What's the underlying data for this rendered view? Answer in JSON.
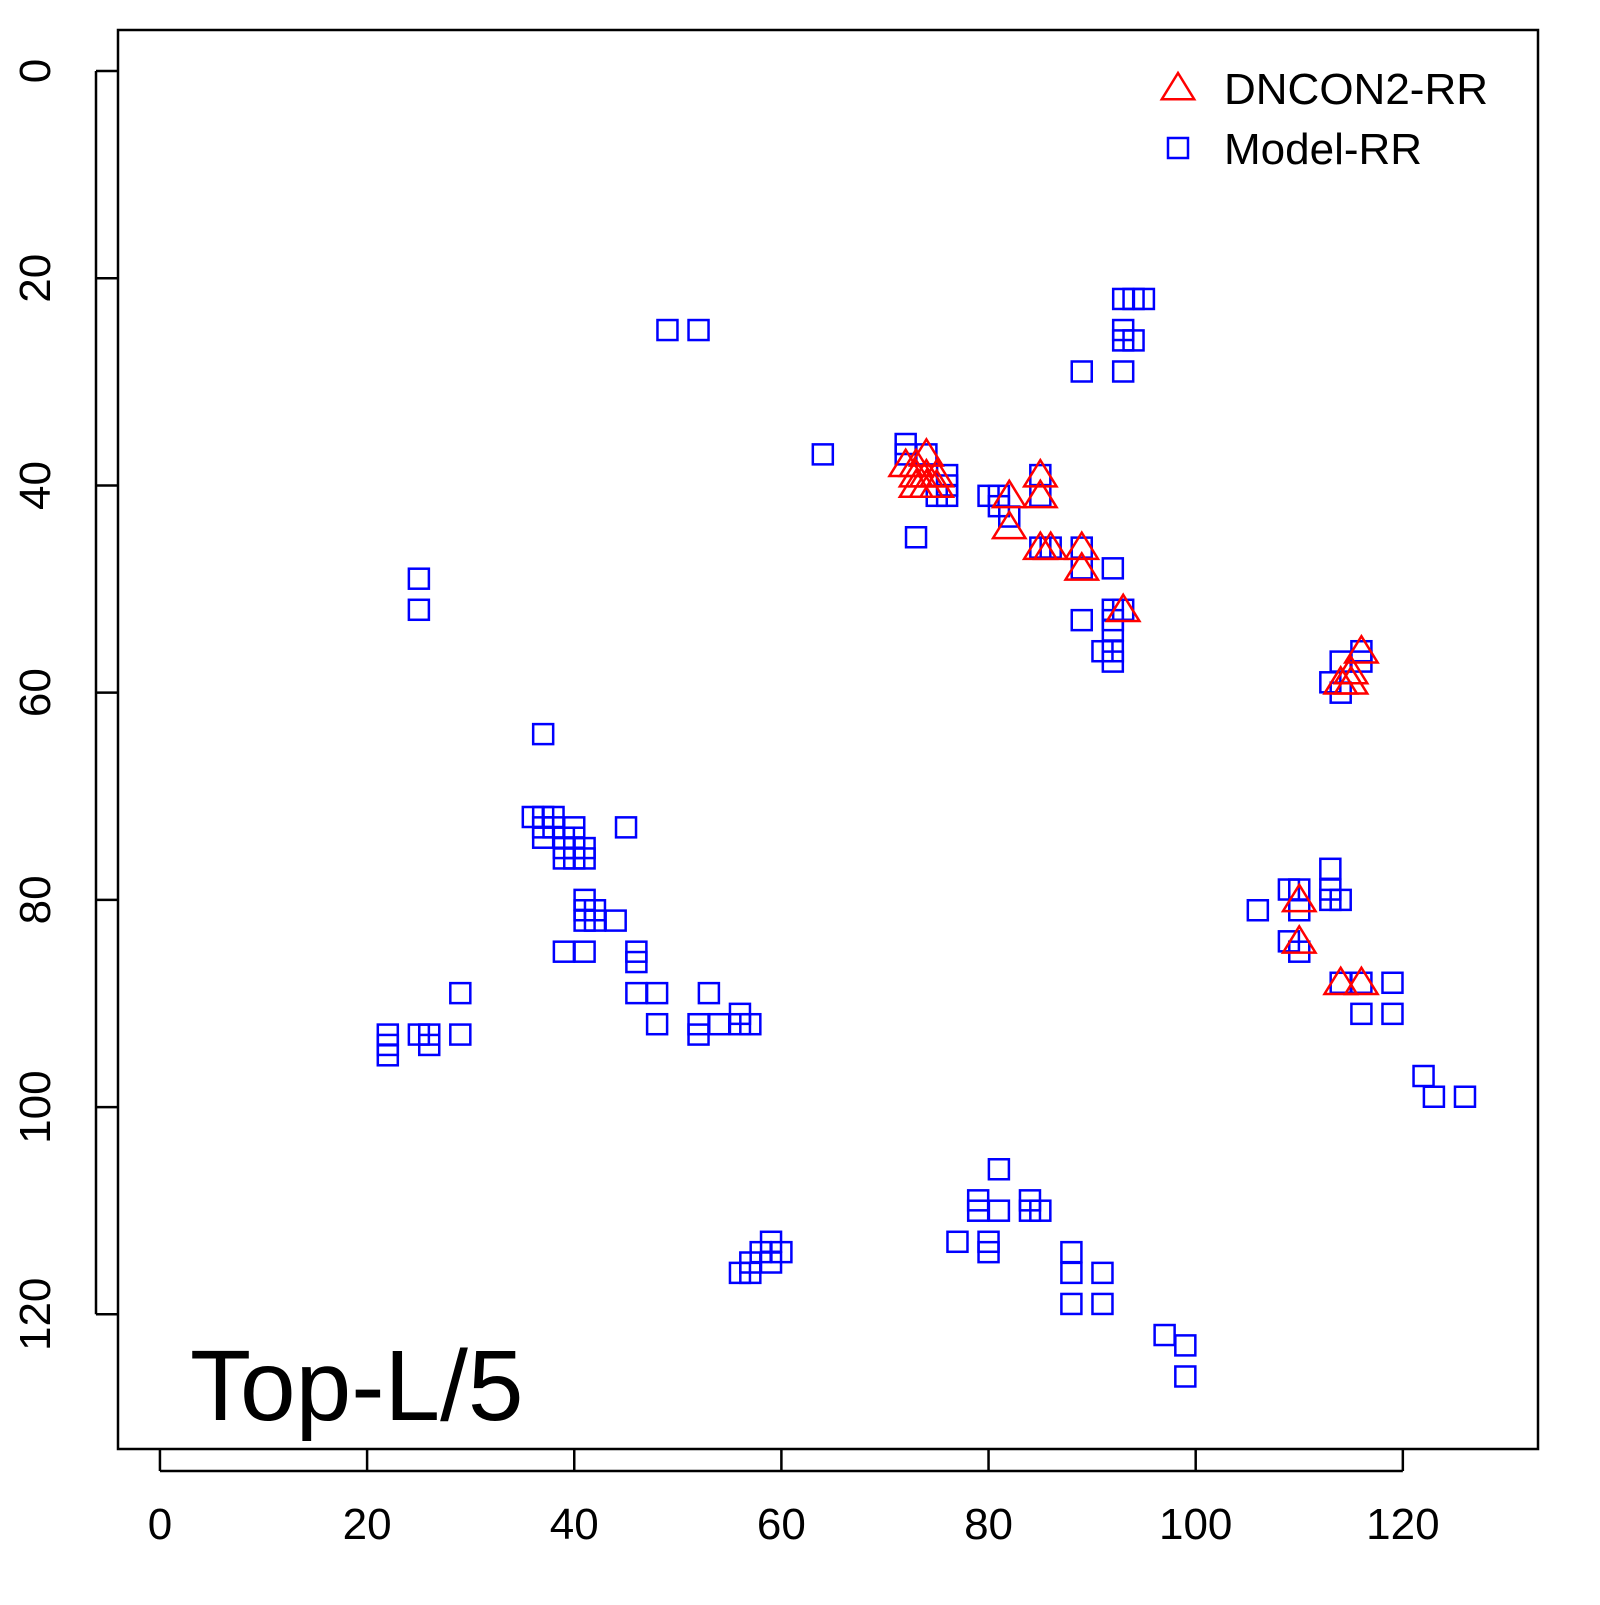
{
  "chart_data": {
    "type": "scatter",
    "annotation": "Top-L/5",
    "xlim": [
      -4.05,
      133.05
    ],
    "ylim": [
      133.0,
      -3.96
    ],
    "y_inverted": true,
    "xticks": [
      0,
      20,
      40,
      60,
      80,
      100,
      120
    ],
    "yticks": [
      0,
      20,
      40,
      60,
      80,
      100,
      120
    ],
    "legend": "topright",
    "series": [
      {
        "name": "DNCON2-RR",
        "color": "#ff0000",
        "marker": "triangle",
        "x": [
          72,
          73,
          74,
          73,
          74,
          75,
          73,
          74,
          75,
          82,
          82,
          85,
          85,
          85,
          86,
          89,
          89,
          93,
          116,
          115,
          114,
          115,
          110,
          110,
          114,
          116
        ],
        "y": [
          38,
          38,
          37,
          39,
          39,
          39,
          40,
          40,
          40,
          41,
          44,
          39,
          41,
          46,
          46,
          46,
          48,
          52,
          56,
          58,
          59,
          59,
          80,
          84,
          88,
          88
        ]
      },
      {
        "name": "Model-RR",
        "color": "#0000ff",
        "marker": "square",
        "x": [
          49,
          52,
          64,
          93,
          94,
          95,
          93,
          93,
          94,
          89,
          93,
          72,
          72,
          74,
          76,
          76,
          75,
          76,
          73,
          80,
          81,
          81,
          82,
          85,
          85,
          85,
          86,
          89,
          89,
          92,
          89,
          92,
          92,
          92,
          91,
          92,
          92,
          93,
          116,
          116,
          114,
          113,
          114,
          25,
          25,
          37,
          36,
          37,
          38,
          37,
          38,
          40,
          37,
          39,
          40,
          39,
          40,
          41,
          39,
          40,
          41,
          45,
          41,
          41,
          42,
          41,
          42,
          44,
          39,
          41,
          46,
          46,
          46,
          48,
          48,
          53,
          52,
          52,
          54,
          56,
          56,
          57,
          29,
          29,
          22,
          22,
          22,
          25,
          26,
          26,
          106,
          109,
          110,
          110,
          113,
          113,
          114,
          113,
          109,
          110,
          114,
          116,
          119,
          116,
          119,
          122,
          123,
          126,
          81,
          79,
          79,
          81,
          84,
          84,
          85,
          77,
          80,
          80,
          88,
          88,
          91,
          88,
          91,
          97,
          99,
          99,
          56,
          57,
          57,
          58,
          59,
          60,
          59
        ],
        "y": [
          25,
          25,
          37,
          22,
          22,
          22,
          25,
          26,
          26,
          29,
          29,
          36,
          37,
          37,
          39,
          40,
          41,
          41,
          45,
          41,
          41,
          42,
          43,
          39,
          41,
          46,
          46,
          46,
          48,
          48,
          53,
          52,
          53,
          54,
          56,
          56,
          57,
          52,
          56,
          57,
          57,
          59,
          60,
          49,
          52,
          64,
          72,
          72,
          72,
          73,
          73,
          73,
          74,
          74,
          74,
          75,
          75,
          75,
          76,
          76,
          76,
          73,
          80,
          81,
          81,
          82,
          82,
          82,
          85,
          85,
          85,
          86,
          89,
          89,
          92,
          89,
          92,
          93,
          92,
          91,
          92,
          92,
          89,
          93,
          93,
          94,
          95,
          93,
          93,
          94,
          81,
          79,
          79,
          81,
          77,
          79,
          80,
          80,
          84,
          85,
          88,
          88,
          88,
          91,
          91,
          97,
          99,
          99,
          106,
          109,
          110,
          110,
          109,
          110,
          110,
          113,
          113,
          114,
          114,
          116,
          116,
          119,
          119,
          122,
          123,
          126,
          116,
          115,
          116,
          114,
          113,
          114,
          115
        ]
      }
    ]
  }
}
